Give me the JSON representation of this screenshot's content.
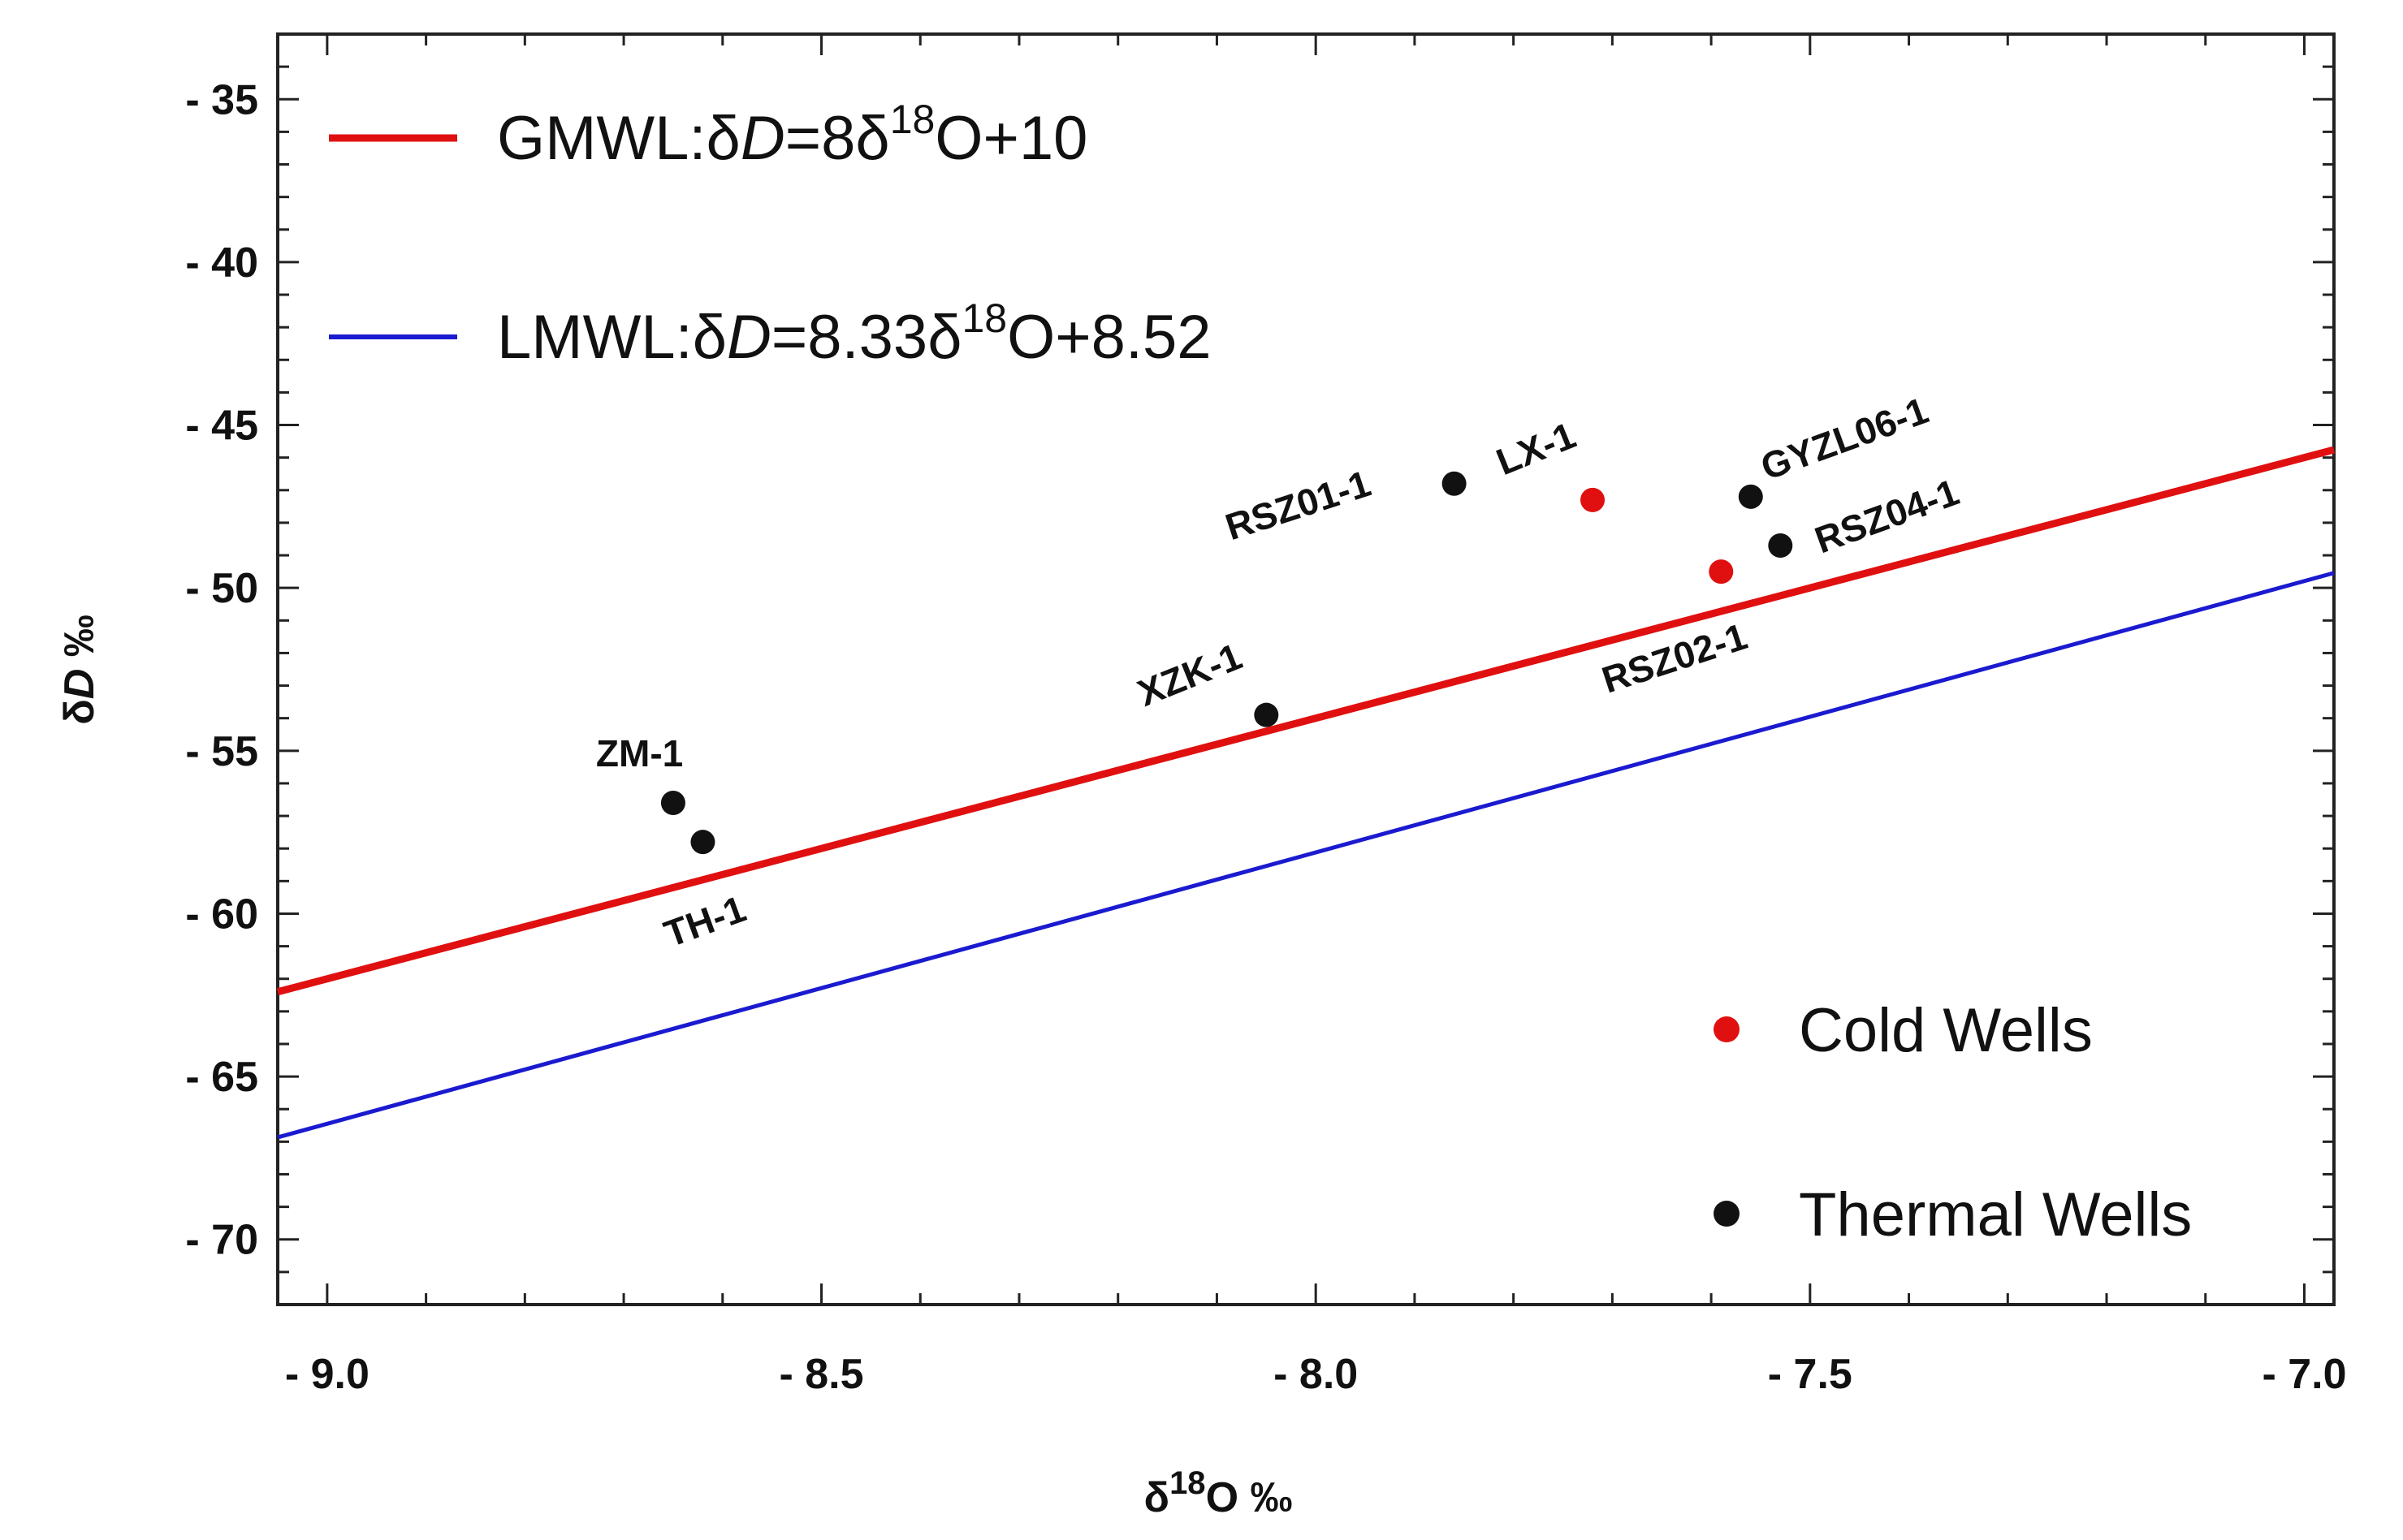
{
  "chart_data": {
    "type": "scatter",
    "title": "",
    "xlabel_parts": [
      "δ",
      "18",
      "O ‰"
    ],
    "ylabel_parts": [
      "δ",
      "D",
      " ‰"
    ],
    "xlim": [
      -9.05,
      -6.97
    ],
    "ylim": [
      -72,
      -33
    ],
    "xticks": [
      -9.0,
      -8.5,
      -8.0,
      -7.5,
      -7.0
    ],
    "xtick_labels": [
      "- 9.0",
      "- 8.5",
      "- 8.0",
      "- 7.5",
      "- 7.0"
    ],
    "yticks": [
      -35,
      -40,
      -45,
      -50,
      -55,
      -60,
      -65,
      -70
    ],
    "ytick_labels": [
      "- 35",
      "- 40",
      "- 45",
      "- 50",
      "- 55",
      "- 60",
      "- 65",
      "- 70"
    ],
    "lines": [
      {
        "name": "GMWL",
        "slope": 8,
        "intercept": 10,
        "color": "#e01010",
        "label_parts": [
          "GMWL:δ",
          "D",
          "=8δ",
          "18",
          "O+10"
        ]
      },
      {
        "name": "LMWL",
        "slope": 8.33,
        "intercept": 8.52,
        "color": "#1a1ad0",
        "label_parts": [
          "LMWL:δ",
          "D",
          "=8.33δ",
          "18",
          "O+8.52"
        ]
      }
    ],
    "series": [
      {
        "name": "Cold Wells",
        "color": "#e01010",
        "points": [
          {
            "label": "LX-1",
            "x": -7.72,
            "y": -47.3
          },
          {
            "label": "RSZ02-1",
            "x": -7.59,
            "y": -49.5
          }
        ]
      },
      {
        "name": "Thermal Wells",
        "color": "#111111",
        "points": [
          {
            "label": "RSZ01-1",
            "x": -7.86,
            "y": -46.8
          },
          {
            "label": "GYZL06-1",
            "x": -7.56,
            "y": -47.2
          },
          {
            "label": "RSZ04-1",
            "x": -7.53,
            "y": -48.7
          },
          {
            "label": "XZK-1",
            "x": -8.05,
            "y": -53.9
          },
          {
            "label": "ZM-1",
            "x": -8.65,
            "y": -56.6
          },
          {
            "label": "TH-1",
            "x": -8.62,
            "y": -57.8
          }
        ]
      }
    ],
    "legend": {
      "lines_position": "top-left",
      "points_position": "bottom-right"
    },
    "grid": false
  }
}
